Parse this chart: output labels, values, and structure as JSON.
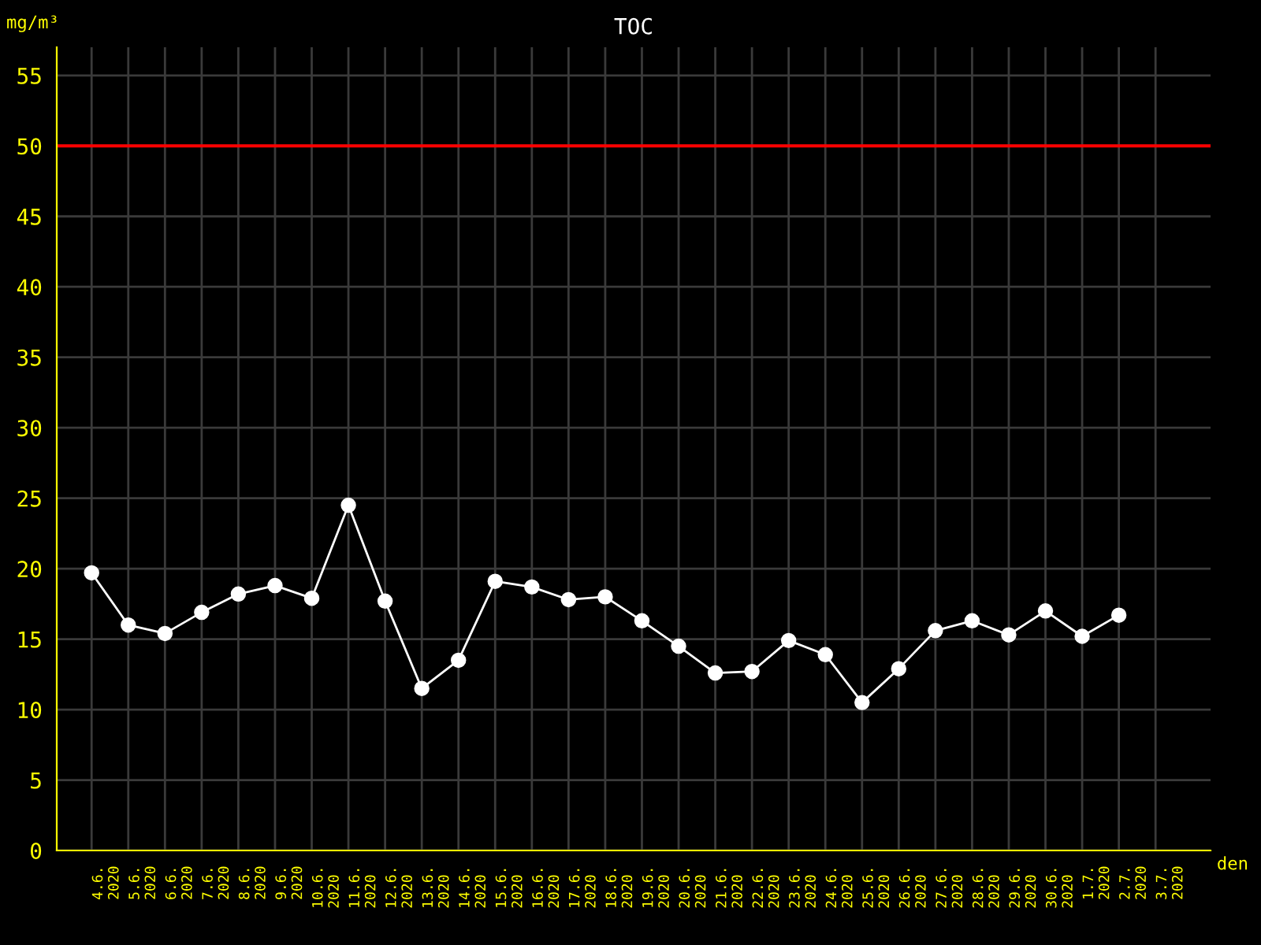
{
  "chart_data": {
    "type": "line",
    "title": "TOC",
    "xlabel": "den",
    "ylabel": "mg/m³",
    "categories": [
      "4.6.\n2020",
      "5.6.\n2020",
      "6.6.\n2020",
      "7.6.\n2020",
      "8.6.\n2020",
      "9.6.\n2020",
      "10.6.\n2020",
      "11.6.\n2020",
      "12.6.\n2020",
      "13.6.\n2020",
      "14.6.\n2020",
      "15.6.\n2020",
      "16.6.\n2020",
      "17.6.\n2020",
      "18.6.\n2020",
      "19.6.\n2020",
      "20.6.\n2020",
      "21.6.\n2020",
      "22.6.\n2020",
      "23.6.\n2020",
      "24.6.\n2020",
      "25.6.\n2020",
      "26.6.\n2020",
      "27.6.\n2020",
      "28.6.\n2020",
      "29.6.\n2020",
      "30.6.\n2020",
      "1.7.\n2020",
      "2.7.\n2020",
      "3.7.\n2020"
    ],
    "series": [
      {
        "color": "#ffffff",
        "values": [
          19.7,
          16.0,
          15.4,
          16.9,
          18.2,
          18.8,
          17.9,
          24.5,
          17.7,
          11.5,
          13.5,
          19.1,
          18.7,
          17.8,
          18.0,
          16.3,
          14.5,
          12.6,
          12.7,
          14.9,
          13.9,
          10.5,
          12.9,
          15.6,
          16.3,
          15.3,
          17.0,
          15.2,
          16.7,
          null
        ]
      }
    ],
    "ylim": [
      0,
      57
    ],
    "yticks": [
      0,
      5,
      10,
      15,
      20,
      25,
      30,
      35,
      40,
      45,
      50,
      55
    ],
    "ref_lines": [
      {
        "axis": "y",
        "value": 50,
        "color": "#ff0000"
      }
    ],
    "grid": true,
    "marker": "circle",
    "line_style": "solid"
  }
}
